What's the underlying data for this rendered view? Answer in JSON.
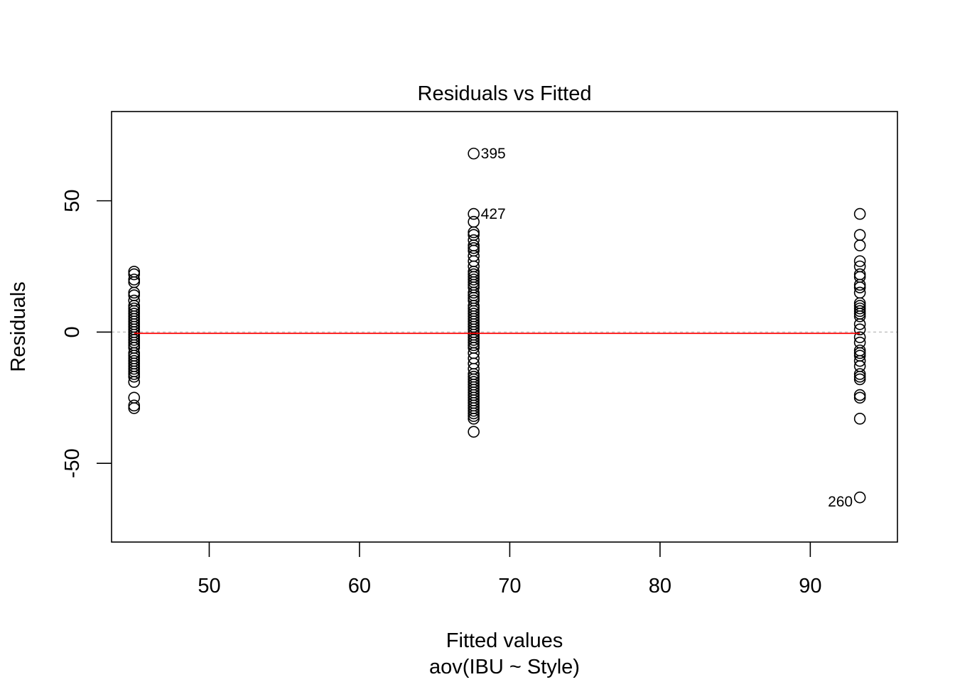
{
  "chart_data": {
    "type": "scatter",
    "title": "Residuals vs Fitted",
    "xlabel": "Fitted values",
    "subtitle": "aov(IBU ~ Style)",
    "ylabel": "Residuals",
    "xlim": [
      43.5,
      95.8
    ],
    "ylim": [
      -80,
      84
    ],
    "x_ticks": [
      50,
      60,
      70,
      80,
      90
    ],
    "y_ticks": [
      -50,
      0,
      50
    ],
    "grid": false,
    "reference_line": {
      "y": 0,
      "color": "#bebebe",
      "style": "dashed"
    },
    "smooth_line": {
      "x": [
        45.0,
        93.3
      ],
      "y": [
        -0.5,
        -0.5
      ],
      "color": "#ff0000"
    },
    "groups": [
      {
        "fitted": 45.0,
        "residuals": [
          23,
          22,
          20,
          19,
          15,
          14,
          12,
          10,
          9,
          8,
          7,
          6,
          5,
          4,
          3,
          2,
          1,
          0,
          -1,
          -2,
          -3,
          -4,
          -5,
          -6,
          -8,
          -9,
          -10,
          -11,
          -12,
          -13,
          -14,
          -15,
          -16,
          -17,
          -19,
          -25,
          -28,
          -29
        ]
      },
      {
        "fitted": 67.6,
        "residuals": [
          68,
          45,
          42,
          38,
          37,
          35,
          33,
          32,
          31,
          29,
          27,
          25,
          23,
          22,
          21,
          20,
          19,
          18,
          17,
          15,
          14,
          13,
          12,
          10,
          9,
          8,
          7,
          6,
          5,
          4,
          3,
          2,
          1,
          0,
          -1,
          -2,
          -3,
          -4,
          -5,
          -6,
          -8,
          -10,
          -12,
          -14,
          -16,
          -17,
          -18,
          -19,
          -20,
          -21,
          -22,
          -23,
          -24,
          -25,
          -26,
          -27,
          -28,
          -29,
          -30,
          -31,
          -32,
          -33,
          -38
        ]
      },
      {
        "fitted": 93.3,
        "residuals": [
          45,
          37,
          33,
          27,
          25,
          22,
          21,
          18,
          17,
          15,
          11,
          10,
          9,
          8,
          7,
          6,
          3,
          1,
          -2,
          -4,
          -7,
          -8,
          -9,
          -11,
          -13,
          -16,
          -17,
          -18,
          -24,
          -25,
          -33,
          -63
        ]
      }
    ],
    "point_labels": [
      {
        "text": "395",
        "x": 67.6,
        "y": 68,
        "side": "right"
      },
      {
        "text": "427",
        "x": 67.6,
        "y": 45,
        "side": "right"
      },
      {
        "text": "260",
        "x": 93.3,
        "y": -63,
        "side": "left"
      }
    ]
  }
}
